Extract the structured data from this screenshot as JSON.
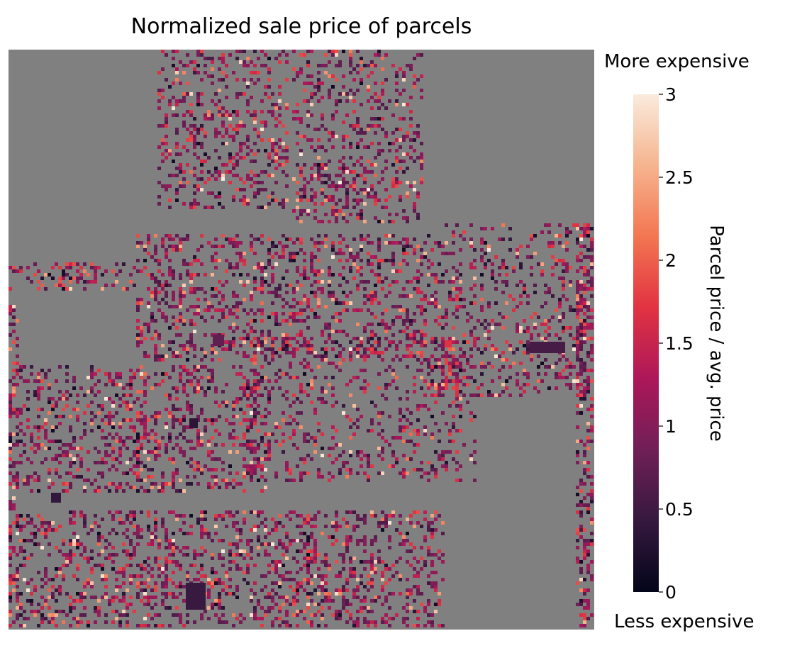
{
  "chart_data": {
    "type": "heatmap",
    "title": "Normalized sale price of parcels",
    "colorbar": {
      "label": "Parcel price / avg. price",
      "min": 0,
      "max": 3,
      "ticks": [
        0,
        0.5,
        1,
        1.5,
        2,
        2.5,
        3
      ],
      "tick_labels": [
        "0",
        "0.5",
        "1",
        "1.5",
        "2",
        "2.5",
        "3"
      ],
      "top_annotation": "More expensive",
      "bottom_annotation": "Less expensive",
      "colormap": "rocket",
      "colormap_stops": [
        "#03051a",
        "#35193e",
        "#701f57",
        "#ad1759",
        "#e13342",
        "#f37651",
        "#f6b48f",
        "#faebdd"
      ]
    },
    "background_color": "#808080",
    "grid": false
  }
}
